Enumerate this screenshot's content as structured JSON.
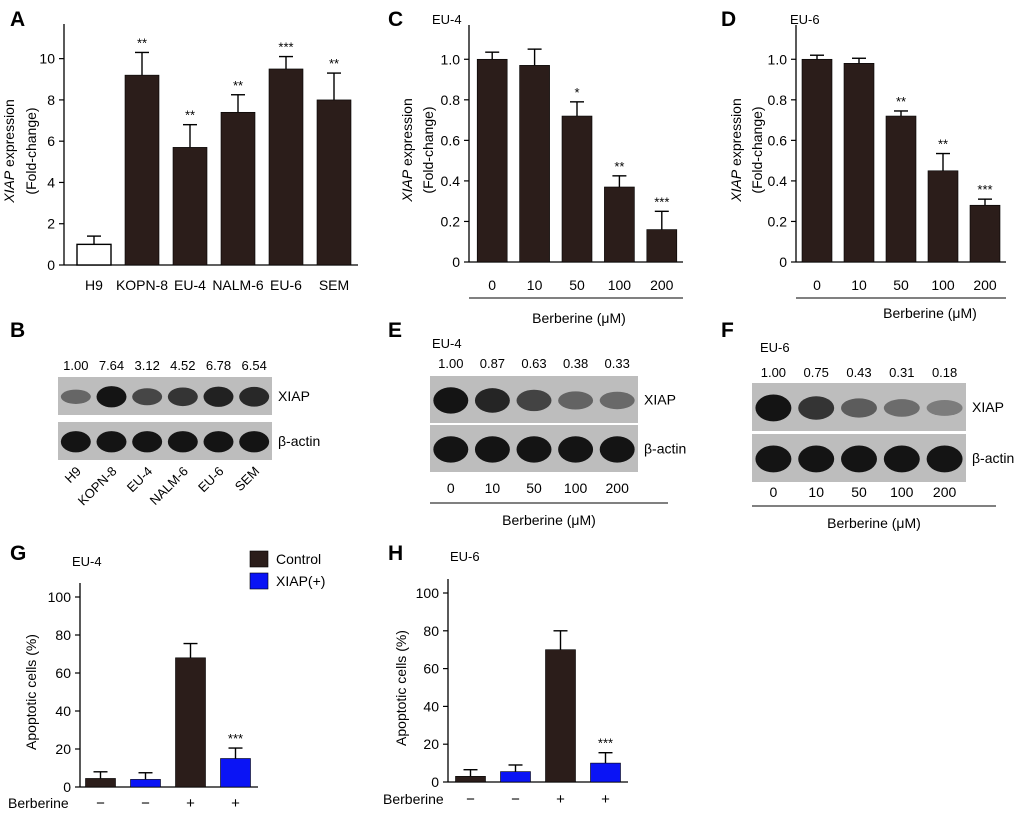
{
  "chart_data": [
    {
      "panel": "A",
      "type": "bar",
      "categories": [
        "H9",
        "KOPN-8",
        "EU-4",
        "NALM-6",
        "EU-6",
        "SEM"
      ],
      "values": [
        1.0,
        9.2,
        5.7,
        7.4,
        9.5,
        8.0
      ],
      "errors": [
        0.4,
        1.1,
        1.1,
        0.85,
        0.6,
        1.3
      ],
      "significance": [
        "",
        "**",
        "**",
        "**",
        "***",
        "**"
      ],
      "bar_colors": [
        "#ffffff",
        "#2b1d1a",
        "#2b1d1a",
        "#2b1d1a",
        "#2b1d1a",
        "#2b1d1a"
      ],
      "ylabel_italic": "XIAP",
      "ylabel_rest": " expression",
      "ylabel2": "(Fold-change)",
      "ylim": [
        0,
        11
      ],
      "yticks": [
        "0",
        "2",
        "4",
        "6",
        "8",
        "10"
      ]
    },
    {
      "panel": "C",
      "type": "bar",
      "title": "EU-4",
      "categories": [
        "0",
        "10",
        "50",
        "100",
        "200"
      ],
      "values": [
        1.0,
        0.97,
        0.72,
        0.37,
        0.16
      ],
      "errors": [
        0.035,
        0.08,
        0.07,
        0.055,
        0.09
      ],
      "significance": [
        "",
        "",
        "*",
        "**",
        "***"
      ],
      "ylabel_italic": "XIAP",
      "ylabel_rest": " expression",
      "ylabel2": "(Fold-change)",
      "xlabel": "Berberine (μM)",
      "ylim": [
        0,
        1.1
      ],
      "yticks": [
        "0",
        "0.2",
        "0.4",
        "0.6",
        "0.8",
        "1.0"
      ]
    },
    {
      "panel": "D",
      "type": "bar",
      "title": "EU-6",
      "categories": [
        "0",
        "10",
        "50",
        "100",
        "200"
      ],
      "values": [
        1.0,
        0.98,
        0.72,
        0.45,
        0.28
      ],
      "errors": [
        0.02,
        0.025,
        0.025,
        0.085,
        0.03
      ],
      "significance": [
        "",
        "",
        "**",
        "**",
        "***"
      ],
      "ylabel_italic": "XIAP",
      "ylabel_rest": " expression",
      "ylabel2": "(Fold-change)",
      "xlabel": "Berberine (μM)",
      "ylim": [
        0,
        1.1
      ],
      "yticks": [
        "0",
        "0.2",
        "0.4",
        "0.6",
        "0.8",
        "1.0"
      ]
    },
    {
      "panel": "G",
      "type": "bar",
      "title": "EU-4",
      "categories": [
        "−",
        "−",
        "+",
        "+"
      ],
      "values": [
        4.5,
        4.0,
        68.0,
        15.0
      ],
      "errors": [
        3.5,
        3.5,
        7.5,
        5.5
      ],
      "series_of_bar": [
        "Control",
        "XIAP(+)",
        "Control",
        "XIAP(+)"
      ],
      "significance": [
        "",
        "",
        "",
        "***"
      ],
      "ylabel": "Apoptotic cells (%)",
      "row_label": "Berberine",
      "ylim": [
        0,
        100
      ],
      "yticks": [
        "0",
        "20",
        "40",
        "60",
        "80",
        "100"
      ]
    },
    {
      "panel": "H",
      "type": "bar",
      "title": "EU-6",
      "categories": [
        "−",
        "−",
        "+",
        "+"
      ],
      "values": [
        3.0,
        5.5,
        70.0,
        10.0
      ],
      "errors": [
        3.5,
        3.5,
        10.0,
        5.5
      ],
      "series_of_bar": [
        "Control",
        "XIAP(+)",
        "Control",
        "XIAP(+)"
      ],
      "significance": [
        "",
        "",
        "",
        "***"
      ],
      "ylabel": "Apoptotic cells (%)",
      "row_label": "Berberine",
      "ylim": [
        0,
        100
      ],
      "yticks": [
        "0",
        "20",
        "40",
        "60",
        "80",
        "100"
      ]
    }
  ],
  "legend": [
    {
      "name": "Control",
      "color": "#2b1d1a"
    },
    {
      "name": "XIAP(+)",
      "color": "#0a14f5"
    }
  ],
  "blots": [
    {
      "panel": "B",
      "ratios": [
        "1.00",
        "7.64",
        "3.12",
        "4.52",
        "6.78",
        "6.54"
      ],
      "intensity": [
        0.35,
        1.0,
        0.6,
        0.75,
        0.9,
        0.85
      ],
      "rows": [
        "XIAP",
        "β-actin"
      ],
      "lanes": [
        "H9",
        "KOPN-8",
        "EU-4",
        "NALM-6",
        "EU-6",
        "SEM"
      ]
    },
    {
      "panel": "E",
      "title": "EU-4",
      "ratios": [
        "1.00",
        "0.87",
        "0.63",
        "0.38",
        "0.33"
      ],
      "intensity": [
        1.0,
        0.87,
        0.63,
        0.38,
        0.33
      ],
      "rows": [
        "XIAP",
        "β-actin"
      ],
      "lanes": [
        "0",
        "10",
        "50",
        "100",
        "200"
      ],
      "xlabel": "Berberine (μM)"
    },
    {
      "panel": "F",
      "title": "EU-6",
      "ratios": [
        "1.00",
        "0.75",
        "0.43",
        "0.31",
        "0.18"
      ],
      "intensity": [
        1.0,
        0.75,
        0.43,
        0.31,
        0.18
      ],
      "rows": [
        "XIAP",
        "β-actin"
      ],
      "lanes": [
        "0",
        "10",
        "50",
        "100",
        "200"
      ],
      "xlabel": "Berberine (μM)"
    }
  ]
}
